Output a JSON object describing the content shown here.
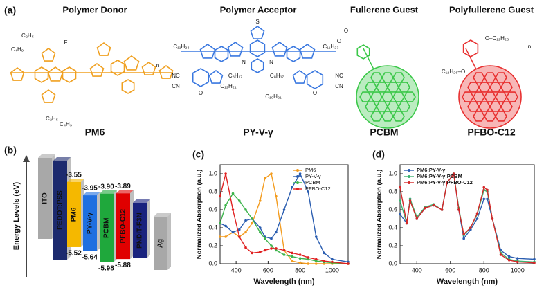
{
  "panel_a": {
    "panel_label": "(a)",
    "structures": [
      {
        "category": "Polymer Donor",
        "name": "PM6",
        "color": "#f0a020",
        "labels": [
          "C₂H₅",
          "C₄H₉",
          "F",
          "C₂H₅",
          "C₄H₉",
          "F",
          "n"
        ]
      },
      {
        "category": "Polymer Acceptor",
        "name": "PY-V-γ",
        "color": "#3a78e0",
        "labels": [
          "S",
          "N",
          "N",
          "C₁₁H₂₃",
          "C₁₁H₂₃",
          "C₈H₁₇",
          "C₈H₁₇",
          "C₁₂H₂₁",
          "C₁₀H₂₁",
          "NC",
          "CN",
          "NC",
          "CN",
          "O",
          "O"
        ]
      },
      {
        "category": "Fullerene Guest",
        "name": "PCBM",
        "color": "#3cc84a",
        "labels": [
          "O",
          "O"
        ]
      },
      {
        "category": "Polyfullerene Guest",
        "name": "PFBO-C12",
        "color": "#e83030",
        "labels": [
          "O–C₁₂H₂₆",
          "C₁₂H₂₆–O",
          "n"
        ]
      }
    ]
  },
  "panel_b": {
    "panel_label": "(b)",
    "axis_label": "Energy Levels (eV)",
    "layers": [
      {
        "name": "ITO",
        "color": "#a8a8a8"
      },
      {
        "name": "PEDOT:PSS",
        "color": "#1c2a6e"
      },
      {
        "name": "PM6",
        "color": "#f5b800",
        "lumo": -3.55,
        "homo": -5.52
      },
      {
        "name": "PY-V-γ",
        "color": "#1f6fe0",
        "lumo": -3.95,
        "homo": -5.64
      },
      {
        "name": "PCBM",
        "color": "#1fa83c",
        "lumo": -3.9,
        "lumo_label": "-3.90",
        "homo": -5.98
      },
      {
        "name": "PFBO-C12",
        "color": "#e00000",
        "lumo": -3.89,
        "homo": -5.88
      },
      {
        "name": "PNDIT-F3N",
        "color": "#1a237e"
      },
      {
        "name": "Ag",
        "color": "#a8a8a8"
      }
    ]
  },
  "chart_data": [
    {
      "type": "line",
      "panel_label": "(c)",
      "x_label": "Wavelength (nm)",
      "y_label": "Normalized Absorption (a.u.)",
      "legend": "upper right",
      "xlim": [
        300,
        1100
      ],
      "ylim": [
        0,
        1.1
      ],
      "xticks": [
        400,
        600,
        800,
        1000
      ],
      "yticks": [
        {
          "value": 0,
          "label": "0.0"
        },
        0.2,
        0.4,
        0.6,
        0.8,
        {
          "value": 1,
          "label": "1.0"
        }
      ],
      "x": [
        300,
        335,
        380,
        420,
        460,
        500,
        550,
        580,
        620,
        650,
        700,
        750,
        800,
        850,
        900,
        950,
        1000,
        1100
      ],
      "series": [
        {
          "name": "PM6",
          "color": "#f39c1f",
          "values": [
            0.3,
            0.3,
            0.35,
            0.3,
            0.35,
            0.45,
            0.7,
            0.95,
            1.0,
            0.75,
            0.15,
            0.03,
            0.01,
            0,
            0,
            0,
            0,
            0
          ]
        },
        {
          "name": "PY-V-γ",
          "color": "#2a5db0",
          "values": [
            0.45,
            0.42,
            0.35,
            0.38,
            0.48,
            0.5,
            0.4,
            0.3,
            0.28,
            0.35,
            0.6,
            0.85,
            1.0,
            0.8,
            0.3,
            0.12,
            0.05,
            0.02
          ]
        },
        {
          "name": "PCBM",
          "color": "#3cb44b",
          "values": [
            0.45,
            0.65,
            0.78,
            0.7,
            0.6,
            0.5,
            0.35,
            0.28,
            0.2,
            0.15,
            0.1,
            0.08,
            0.06,
            0.05,
            0.03,
            0.02,
            0.01,
            0
          ]
        },
        {
          "name": "PFBO-C12",
          "color": "#e02020",
          "values": [
            0.75,
            1.0,
            0.6,
            0.3,
            0.18,
            0.12,
            0.13,
            0.15,
            0.17,
            0.17,
            0.15,
            0.12,
            0.1,
            0.07,
            0.05,
            0.03,
            0.02,
            0
          ]
        }
      ]
    },
    {
      "type": "line",
      "panel_label": "(d)",
      "x_label": "Wavelength (nm)",
      "y_label": "Normalized Absorption (a.u.)",
      "legend": "upper left",
      "xlim": [
        300,
        1100
      ],
      "ylim": [
        0,
        1.1
      ],
      "xticks": [
        400,
        600,
        800,
        1000
      ],
      "yticks": [
        {
          "value": 0,
          "label": "0.0"
        },
        0.2,
        0.4,
        0.6,
        0.8,
        {
          "value": 1,
          "label": "1.0"
        }
      ],
      "x": [
        300,
        340,
        360,
        400,
        450,
        500,
        550,
        580,
        620,
        650,
        680,
        720,
        760,
        800,
        820,
        850,
        900,
        950,
        1000,
        1100
      ],
      "series": [
        {
          "name": "PM6:PY-V-γ",
          "color": "#2a5db0",
          "values": [
            0.55,
            0.45,
            0.72,
            0.5,
            0.62,
            0.65,
            0.6,
            0.9,
            1.0,
            0.6,
            0.28,
            0.38,
            0.5,
            0.72,
            0.72,
            0.5,
            0.15,
            0.08,
            0.06,
            0.05
          ]
        },
        {
          "name": "PM6:PY-V-γ:PCBM",
          "color": "#3cb371",
          "values": [
            0.7,
            0.45,
            0.72,
            0.52,
            0.63,
            0.66,
            0.6,
            0.9,
            1.0,
            0.62,
            0.32,
            0.4,
            0.55,
            0.82,
            0.8,
            0.5,
            0.12,
            0.05,
            0.03,
            0.02
          ]
        },
        {
          "name": "PM6:PY-V-γ:PFBO-C12",
          "color": "#d62728",
          "values": [
            0.85,
            0.45,
            0.7,
            0.5,
            0.62,
            0.65,
            0.6,
            0.9,
            1.0,
            0.6,
            0.33,
            0.4,
            0.56,
            0.85,
            0.82,
            0.5,
            0.1,
            0.04,
            0.02,
            0.01
          ]
        }
      ]
    }
  ]
}
